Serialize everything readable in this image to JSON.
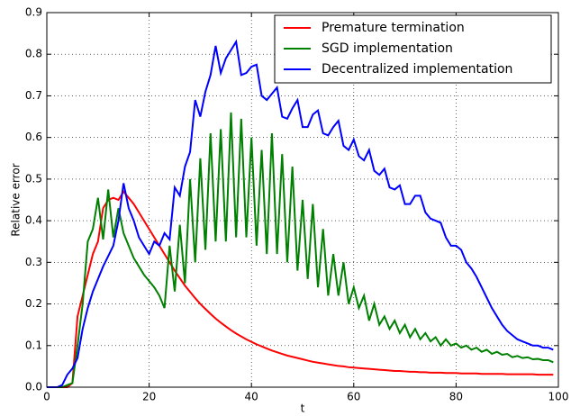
{
  "chart_data": {
    "type": "line",
    "xlabel": "t",
    "ylabel": "Relative error",
    "x": [
      0,
      1,
      2,
      3,
      4,
      5,
      6,
      7,
      8,
      9,
      10,
      11,
      12,
      13,
      14,
      15,
      16,
      17,
      18,
      19,
      20,
      21,
      22,
      23,
      24,
      25,
      26,
      27,
      28,
      29,
      30,
      31,
      32,
      33,
      34,
      35,
      36,
      37,
      38,
      39,
      40,
      41,
      42,
      43,
      44,
      45,
      46,
      47,
      48,
      49,
      50,
      51,
      52,
      53,
      54,
      55,
      56,
      57,
      58,
      59,
      60,
      61,
      62,
      63,
      64,
      65,
      66,
      67,
      68,
      69,
      70,
      71,
      72,
      73,
      74,
      75,
      76,
      77,
      78,
      79,
      80,
      81,
      82,
      83,
      84,
      85,
      86,
      87,
      88,
      89,
      90,
      91,
      92,
      93,
      94,
      95,
      96,
      97,
      98,
      99
    ],
    "series": [
      {
        "name": "Premature termination",
        "color": "#ff0000",
        "values": [
          0,
          0,
          0,
          0,
          0,
          0.01,
          0.17,
          0.22,
          0.27,
          0.32,
          0.35,
          0.43,
          0.45,
          0.455,
          0.45,
          0.47,
          0.455,
          0.44,
          0.42,
          0.4,
          0.38,
          0.36,
          0.34,
          0.32,
          0.3,
          0.28,
          0.262,
          0.244,
          0.229,
          0.214,
          0.2,
          0.188,
          0.176,
          0.165,
          0.155,
          0.146,
          0.137,
          0.129,
          0.122,
          0.115,
          0.109,
          0.103,
          0.098,
          0.093,
          0.088,
          0.084,
          0.08,
          0.076,
          0.073,
          0.07,
          0.067,
          0.064,
          0.061,
          0.059,
          0.057,
          0.055,
          0.053,
          0.051,
          0.05,
          0.048,
          0.047,
          0.046,
          0.045,
          0.044,
          0.043,
          0.042,
          0.041,
          0.04,
          0.039,
          0.039,
          0.038,
          0.037,
          0.037,
          0.036,
          0.036,
          0.035,
          0.035,
          0.035,
          0.034,
          0.034,
          0.034,
          0.033,
          0.033,
          0.033,
          0.033,
          0.032,
          0.032,
          0.032,
          0.032,
          0.032,
          0.031,
          0.031,
          0.031,
          0.031,
          0.031,
          0.031,
          0.03,
          0.03,
          0.03,
          0.03
        ]
      },
      {
        "name": "SGD implementation",
        "color": "#008000",
        "values": [
          0,
          0,
          0,
          0,
          0.005,
          0.01,
          0.1,
          0.2,
          0.35,
          0.38,
          0.455,
          0.355,
          0.475,
          0.36,
          0.43,
          0.37,
          0.34,
          0.31,
          0.29,
          0.27,
          0.255,
          0.24,
          0.22,
          0.19,
          0.34,
          0.23,
          0.39,
          0.25,
          0.5,
          0.3,
          0.55,
          0.33,
          0.61,
          0.35,
          0.62,
          0.35,
          0.66,
          0.36,
          0.645,
          0.36,
          0.6,
          0.34,
          0.57,
          0.32,
          0.61,
          0.32,
          0.56,
          0.3,
          0.53,
          0.28,
          0.45,
          0.26,
          0.44,
          0.24,
          0.38,
          0.22,
          0.32,
          0.22,
          0.3,
          0.2,
          0.24,
          0.19,
          0.22,
          0.16,
          0.2,
          0.15,
          0.17,
          0.14,
          0.16,
          0.13,
          0.15,
          0.12,
          0.14,
          0.115,
          0.13,
          0.11,
          0.12,
          0.1,
          0.115,
          0.1,
          0.105,
          0.095,
          0.1,
          0.09,
          0.095,
          0.085,
          0.09,
          0.08,
          0.085,
          0.078,
          0.08,
          0.072,
          0.075,
          0.07,
          0.072,
          0.067,
          0.068,
          0.065,
          0.065,
          0.06
        ]
      },
      {
        "name": "Decentralized implementation",
        "color": "#0000ff",
        "values": [
          0,
          0,
          0,
          0.005,
          0.03,
          0.045,
          0.07,
          0.14,
          0.19,
          0.23,
          0.26,
          0.29,
          0.315,
          0.34,
          0.4,
          0.49,
          0.43,
          0.4,
          0.36,
          0.34,
          0.32,
          0.35,
          0.34,
          0.37,
          0.355,
          0.48,
          0.46,
          0.53,
          0.565,
          0.69,
          0.65,
          0.71,
          0.75,
          0.82,
          0.755,
          0.79,
          0.81,
          0.83,
          0.75,
          0.755,
          0.77,
          0.775,
          0.7,
          0.69,
          0.705,
          0.72,
          0.65,
          0.645,
          0.67,
          0.69,
          0.625,
          0.625,
          0.655,
          0.665,
          0.61,
          0.605,
          0.625,
          0.64,
          0.58,
          0.57,
          0.595,
          0.555,
          0.545,
          0.57,
          0.52,
          0.51,
          0.525,
          0.48,
          0.475,
          0.485,
          0.44,
          0.44,
          0.46,
          0.46,
          0.42,
          0.405,
          0.4,
          0.395,
          0.36,
          0.34,
          0.34,
          0.33,
          0.3,
          0.285,
          0.265,
          0.24,
          0.215,
          0.19,
          0.17,
          0.15,
          0.135,
          0.125,
          0.115,
          0.11,
          0.105,
          0.1,
          0.1,
          0.095,
          0.095,
          0.09
        ]
      }
    ],
    "xlim": [
      0,
      100
    ],
    "xticks": [
      0,
      20,
      40,
      60,
      80,
      100
    ],
    "ylim": [
      0,
      0.9
    ],
    "yticks": [
      {
        "value": 0,
        "label": "0.0"
      },
      0.1,
      0.2,
      0.3,
      0.4,
      0.5,
      0.6,
      0.7,
      0.8,
      0.9
    ],
    "grid": true,
    "legend": "upper right"
  }
}
